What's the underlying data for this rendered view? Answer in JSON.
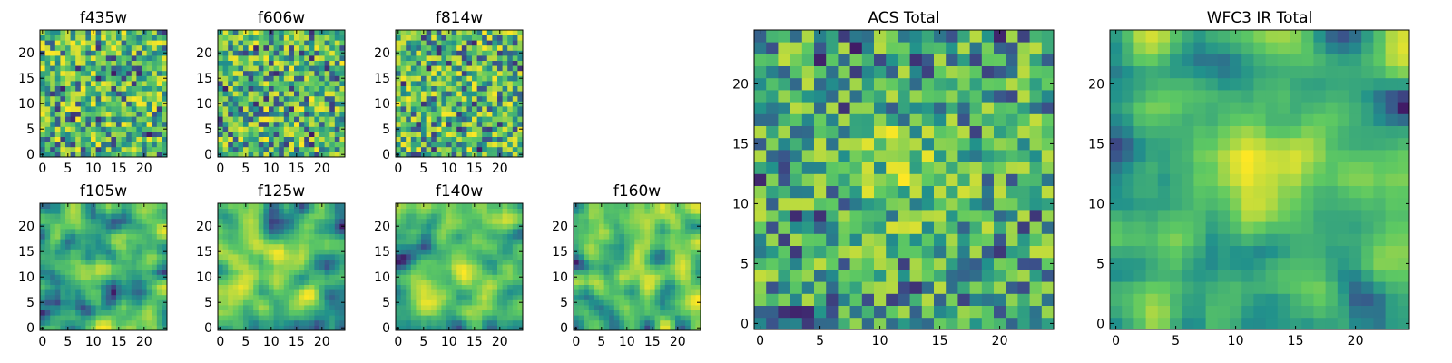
{
  "chart_data": [
    {
      "type": "heatmap",
      "title": "f435w",
      "grid": [
        25,
        25
      ],
      "colormap": "viridis",
      "xticks": [
        "0",
        "5",
        "10",
        "15",
        "20"
      ],
      "yticks": [
        "0",
        "5",
        "10",
        "15",
        "20"
      ],
      "texture": {
        "seed": 11,
        "smooth": 0,
        "hotspots": []
      }
    },
    {
      "type": "heatmap",
      "title": "f606w",
      "grid": [
        25,
        25
      ],
      "colormap": "viridis",
      "xticks": [
        "0",
        "5",
        "10",
        "15",
        "20"
      ],
      "yticks": [
        "0",
        "5",
        "10",
        "15",
        "20"
      ],
      "texture": {
        "seed": 23,
        "smooth": 0,
        "hotspots": []
      }
    },
    {
      "type": "heatmap",
      "title": "f814w",
      "grid": [
        25,
        25
      ],
      "colormap": "viridis",
      "xticks": [
        "0",
        "5",
        "10",
        "15",
        "20"
      ],
      "yticks": [
        "0",
        "5",
        "10",
        "15",
        "20"
      ],
      "texture": {
        "seed": 37,
        "smooth": 0,
        "hotspots": []
      }
    },
    {
      "type": "heatmap",
      "title": "f105w",
      "grid": [
        25,
        25
      ],
      "colormap": "viridis",
      "xticks": [
        "0",
        "5",
        "10",
        "15",
        "20"
      ],
      "yticks": [
        "0",
        "5",
        "10",
        "15",
        "20"
      ],
      "texture": {
        "seed": 41,
        "smooth": 2,
        "hotspots": [
          [
            12,
            12,
            0.25
          ]
        ]
      }
    },
    {
      "type": "heatmap",
      "title": "f125w",
      "grid": [
        25,
        25
      ],
      "colormap": "viridis",
      "xticks": [
        "0",
        "5",
        "10",
        "15",
        "20"
      ],
      "yticks": [
        "0",
        "5",
        "10",
        "15",
        "20"
      ],
      "texture": {
        "seed": 53,
        "smooth": 2,
        "hotspots": [
          [
            12,
            12,
            0.2
          ]
        ]
      }
    },
    {
      "type": "heatmap",
      "title": "f140w",
      "grid": [
        25,
        25
      ],
      "colormap": "viridis",
      "xticks": [
        "0",
        "5",
        "10",
        "15",
        "20"
      ],
      "yticks": [
        "0",
        "5",
        "10",
        "15",
        "20"
      ],
      "texture": {
        "seed": 67,
        "smooth": 2,
        "hotspots": [
          [
            12,
            12,
            0.2
          ]
        ]
      }
    },
    {
      "type": "heatmap",
      "title": "f160w",
      "grid": [
        25,
        25
      ],
      "colormap": "viridis",
      "xticks": [
        "0",
        "5",
        "10",
        "15",
        "20"
      ],
      "yticks": [
        "0",
        "5",
        "10",
        "15",
        "20"
      ],
      "texture": {
        "seed": 79,
        "smooth": 2,
        "hotspots": [
          [
            12,
            12,
            0.25
          ]
        ]
      }
    },
    {
      "type": "heatmap",
      "title": "ACS Total",
      "grid": [
        25,
        25
      ],
      "colormap": "viridis",
      "xticks": [
        "0",
        "5",
        "10",
        "15",
        "20"
      ],
      "yticks": [
        "0",
        "5",
        "10",
        "15",
        "20"
      ],
      "texture": {
        "seed": 97,
        "smooth": 0,
        "hotspots": [
          [
            12,
            13,
            0.3
          ]
        ]
      }
    },
    {
      "type": "heatmap",
      "title": "WFC3 IR Total",
      "grid": [
        25,
        25
      ],
      "colormap": "viridis",
      "xticks": [
        "0",
        "5",
        "10",
        "15",
        "20"
      ],
      "yticks": [
        "0",
        "5",
        "10",
        "15",
        "20"
      ],
      "texture": {
        "seed": 113,
        "smooth": 2,
        "hotspots": [
          [
            12,
            13,
            0.45
          ]
        ]
      }
    }
  ],
  "colors": {
    "viridis": [
      "#440154",
      "#3b528b",
      "#21918c",
      "#5ec962",
      "#fde725"
    ]
  }
}
